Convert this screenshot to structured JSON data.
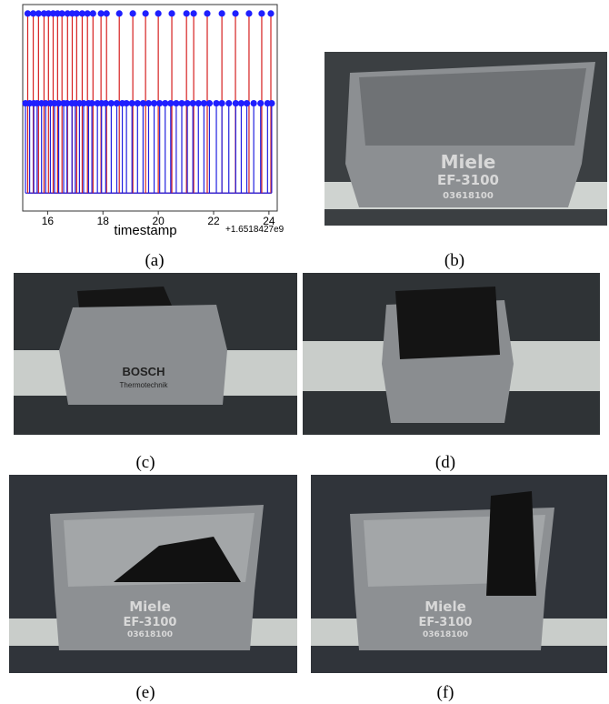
{
  "chart_data": {
    "type": "stem",
    "xlabel": "timestamp",
    "x_offset_label": "+1.6518427e9",
    "xlim": [
      15.1,
      24.3
    ],
    "xticks": [
      16,
      18,
      20,
      22,
      24
    ],
    "ylim": [
      -0.1,
      1.05
    ],
    "marker_color": "#1f1fff",
    "series": [
      {
        "color": "#d62020",
        "x": [
          15.28,
          15.48,
          15.67,
          15.87,
          16.03,
          16.2,
          16.36,
          16.52,
          16.72,
          16.89,
          17.05,
          17.25,
          17.44,
          17.64,
          17.93,
          18.13,
          18.59,
          19.08,
          19.54,
          20.0,
          20.49,
          21.02,
          21.28,
          21.77,
          22.3,
          22.79,
          23.28,
          23.74,
          24.07
        ],
        "values": [
          1,
          1,
          1,
          1,
          1,
          1,
          1,
          1,
          1,
          1,
          1,
          1,
          1,
          1,
          1,
          1,
          1,
          1,
          1,
          1,
          1,
          1,
          1,
          1,
          1,
          1,
          1,
          1,
          1
        ]
      },
      {
        "color": "#2020e0",
        "x": [
          15.2,
          15.35,
          15.5,
          15.62,
          15.78,
          15.93,
          16.1,
          16.25,
          16.4,
          16.58,
          16.7,
          16.88,
          17.0,
          17.15,
          17.3,
          17.48,
          17.6,
          17.8,
          17.95,
          18.1,
          18.3,
          18.5,
          18.7,
          18.85,
          19.05,
          19.25,
          19.45,
          19.65,
          19.85,
          20.05,
          20.25,
          20.45,
          20.65,
          20.85,
          21.05,
          21.25,
          21.45,
          21.65,
          21.85,
          22.1,
          22.3,
          22.55,
          22.8,
          23.0,
          23.2,
          23.45,
          23.7,
          23.95,
          24.1
        ],
        "values": [
          0.5,
          0.5,
          0.5,
          0.5,
          0.5,
          0.5,
          0.5,
          0.5,
          0.5,
          0.5,
          0.5,
          0.5,
          0.5,
          0.5,
          0.5,
          0.5,
          0.5,
          0.5,
          0.5,
          0.5,
          0.5,
          0.5,
          0.5,
          0.5,
          0.5,
          0.5,
          0.5,
          0.5,
          0.5,
          0.5,
          0.5,
          0.5,
          0.5,
          0.5,
          0.5,
          0.5,
          0.5,
          0.5,
          0.5,
          0.5,
          0.5,
          0.5,
          0.5,
          0.5,
          0.5,
          0.5,
          0.5,
          0.5,
          0.5
        ]
      }
    ]
  },
  "captions": [
    "(a)",
    "(b)",
    "(c)",
    "(d)",
    "(e)",
    "(f)"
  ],
  "photos": {
    "b": {
      "brand": "Miele",
      "model": "EF-3100",
      "code": "03618100"
    },
    "c": {
      "brand": "BOSCH",
      "sub": "Thermotechnik"
    },
    "e": {
      "brand": "Miele",
      "model": "EF-3100",
      "code": "03618100"
    },
    "f": {
      "brand": "Miele",
      "model": "EF-3100",
      "code": "03618100"
    }
  }
}
